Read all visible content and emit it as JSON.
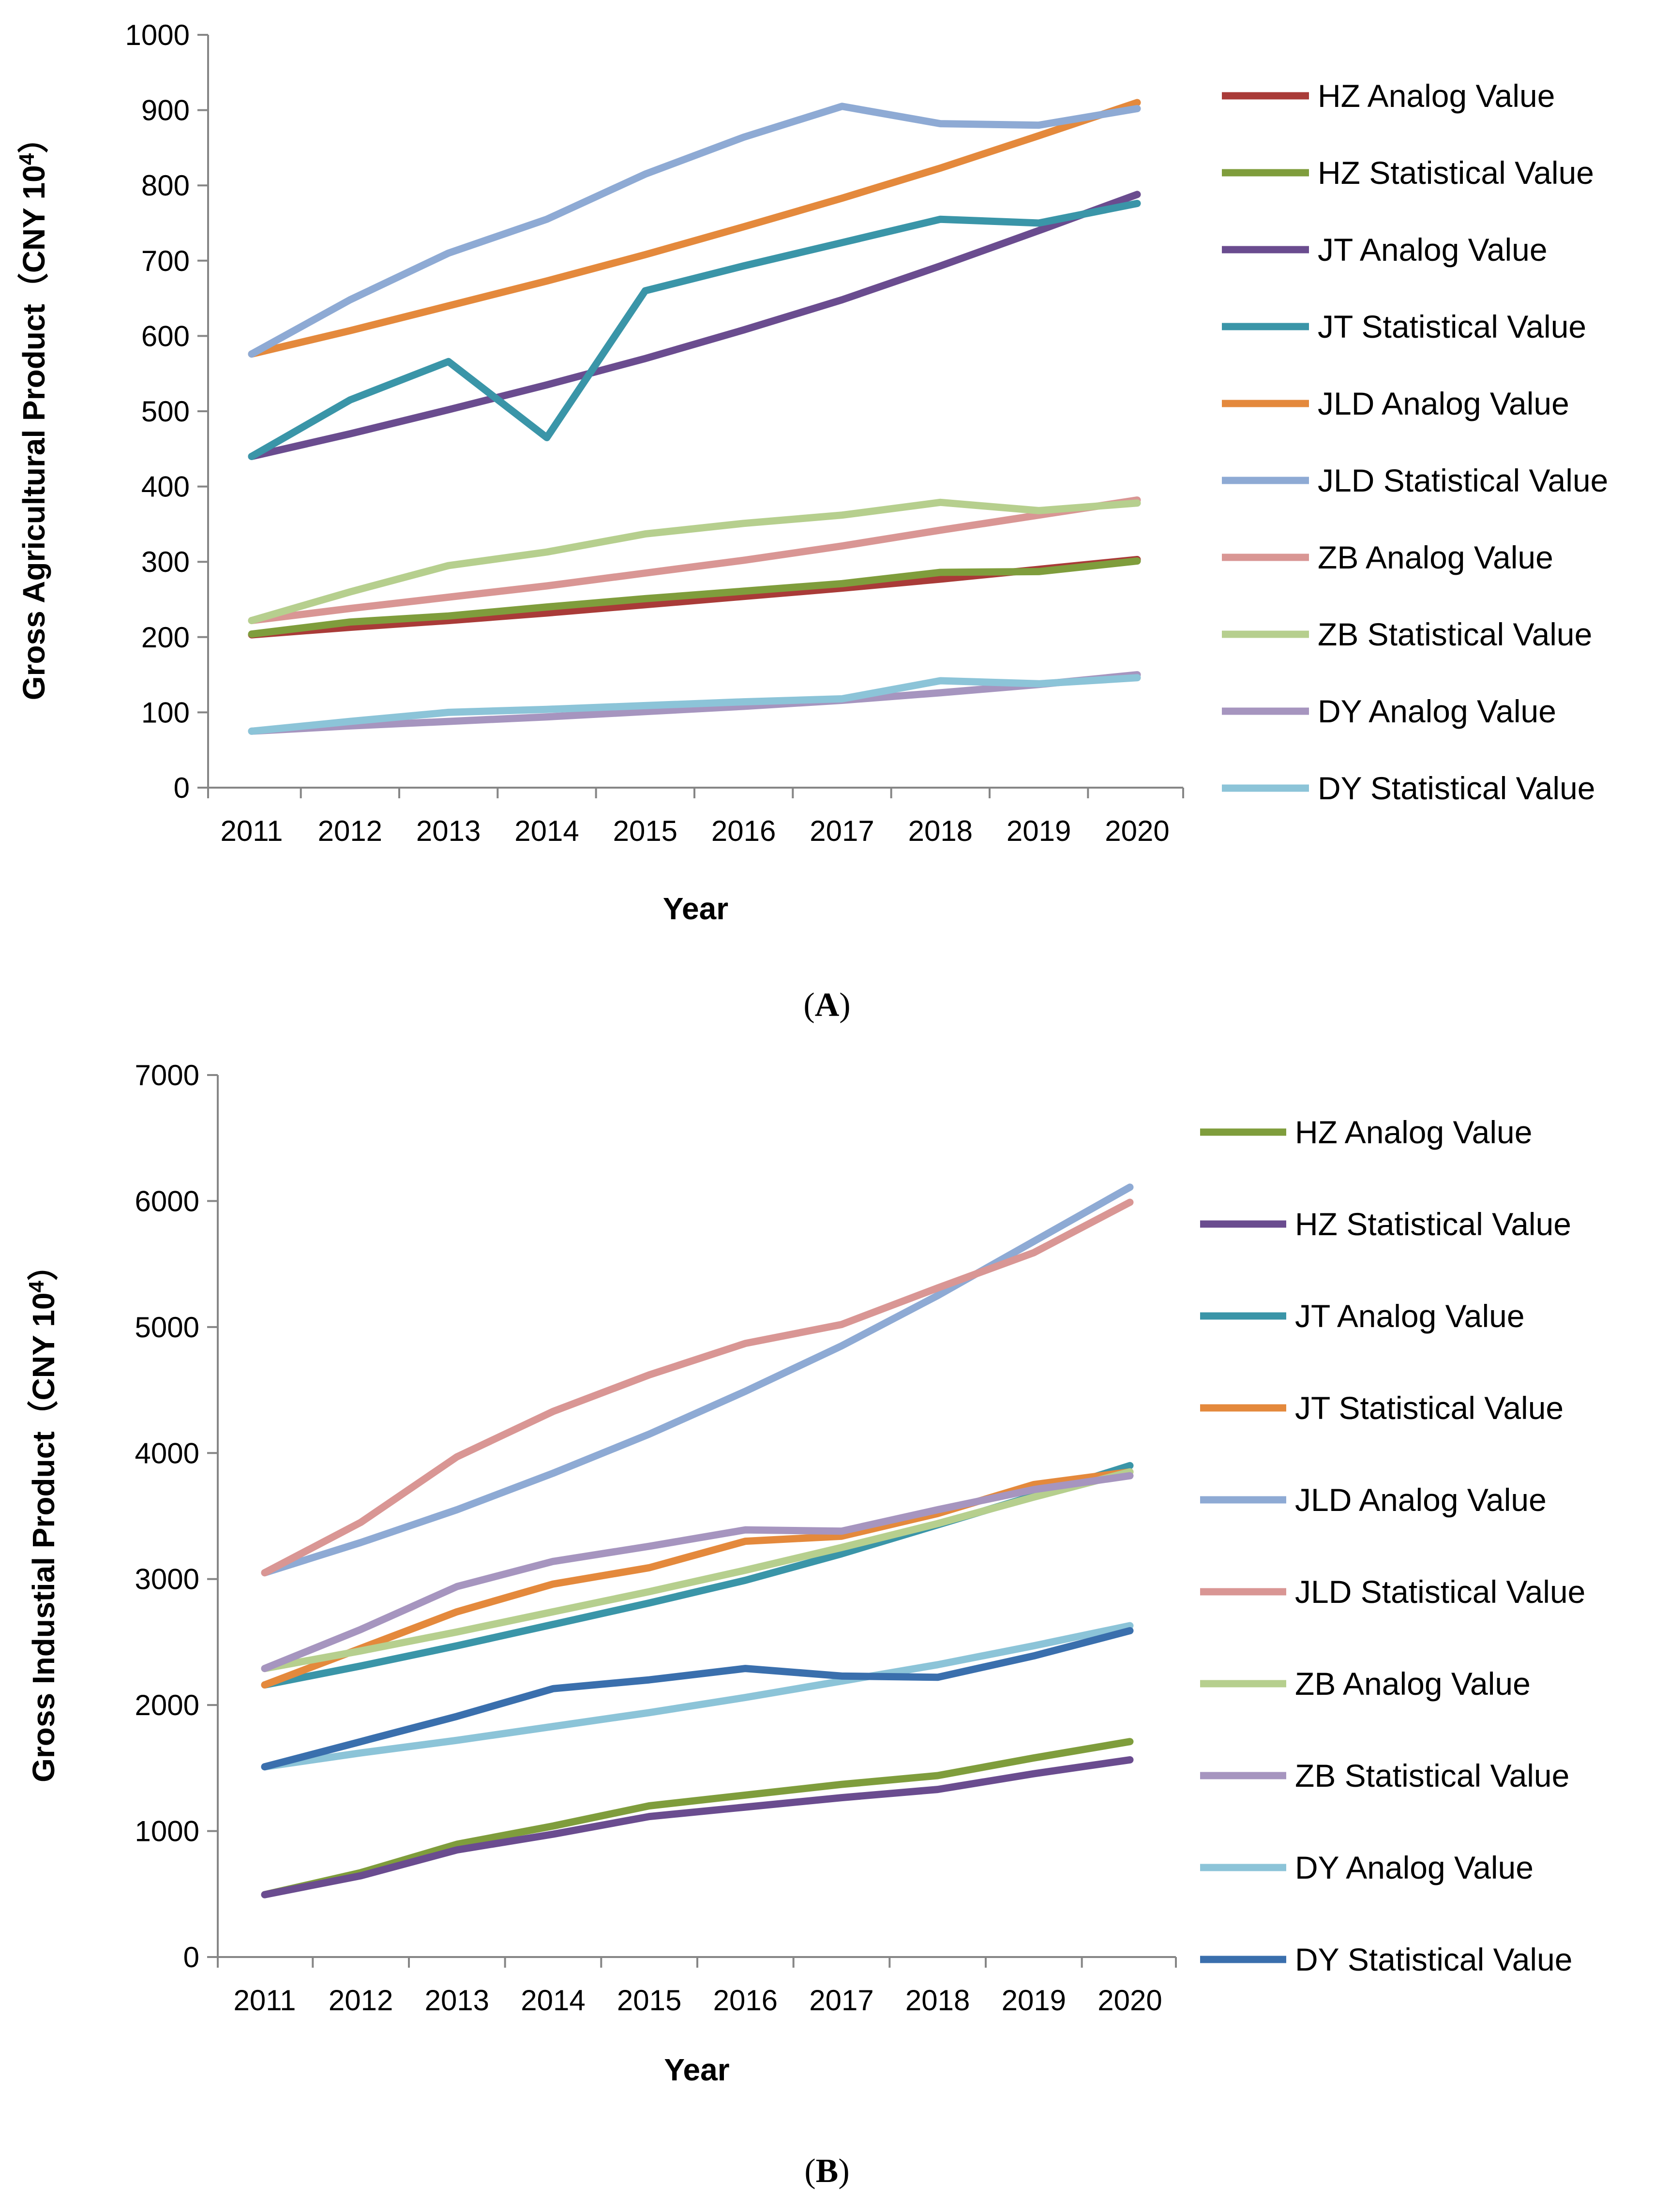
{
  "chart_data": [
    {
      "type": "line",
      "panel_label": "A",
      "xlabel": "Year",
      "ylabel": "Gross Agricultural Product（CNY 10",
      "ylabel_sup": "4",
      "ylabel_close": "）",
      "ylim": [
        0,
        1000
      ],
      "yticks": [
        0,
        100,
        200,
        300,
        400,
        500,
        600,
        700,
        800,
        900,
        1000
      ],
      "categories": [
        "2011",
        "2012",
        "2013",
        "2014",
        "2015",
        "2016",
        "2017",
        "2018",
        "2019",
        "2020"
      ],
      "grid": false,
      "legend": "right",
      "series": [
        {
          "name": "HZ Analog Value",
          "color": "#a93b38",
          "values": [
            203,
            213,
            222,
            232,
            243,
            254,
            265,
            277,
            290,
            303
          ]
        },
        {
          "name": "HZ Statistical Value",
          "color": "#7f9d3c",
          "values": [
            204,
            220,
            228,
            240,
            251,
            261,
            271,
            286,
            287,
            301
          ]
        },
        {
          "name": "JT Analog Value",
          "color": "#6a4c8f",
          "values": [
            440,
            470,
            502,
            535,
            570,
            608,
            648,
            693,
            740,
            788
          ]
        },
        {
          "name": "JT Statistical Value",
          "color": "#3a95a8",
          "values": [
            440,
            515,
            566,
            465,
            660,
            693,
            724,
            755,
            750,
            776
          ]
        },
        {
          "name": "JLD Analog Value",
          "color": "#e4893c",
          "values": [
            576,
            607,
            640,
            673,
            708,
            745,
            783,
            823,
            866,
            910
          ]
        },
        {
          "name": "JLD Statistical Value",
          "color": "#8eaad4",
          "values": [
            576,
            648,
            710,
            755,
            815,
            864,
            905,
            882,
            880,
            902
          ]
        },
        {
          "name": "ZB Analog Value",
          "color": "#d99694",
          "values": [
            222,
            238,
            253,
            268,
            285,
            302,
            321,
            342,
            362,
            382
          ]
        },
        {
          "name": "ZB Statistical Value",
          "color": "#b6cf8e",
          "values": [
            222,
            260,
            295,
            313,
            337,
            351,
            362,
            379,
            368,
            378
          ]
        },
        {
          "name": "DY Analog Value",
          "color": "#a695bf",
          "values": [
            75,
            82,
            88,
            94,
            101,
            108,
            116,
            126,
            137,
            150
          ]
        },
        {
          "name": "DY Statistical Value",
          "color": "#8cc4d8",
          "values": [
            75,
            88,
            100,
            104,
            109,
            114,
            118,
            142,
            138,
            146
          ]
        }
      ]
    },
    {
      "type": "line",
      "panel_label": "B",
      "xlabel": "Year",
      "ylabel": "Gross Industial Product（CNY 10",
      "ylabel_sup": "4",
      "ylabel_close": "）",
      "ylim": [
        0,
        7000
      ],
      "yticks": [
        0,
        1000,
        2000,
        3000,
        4000,
        5000,
        6000,
        7000
      ],
      "categories": [
        "2011",
        "2012",
        "2013",
        "2014",
        "2015",
        "2016",
        "2017",
        "2018",
        "2019",
        "2020"
      ],
      "grid": false,
      "legend": "right",
      "series": [
        {
          "name": "HZ Analog Value",
          "color": "#7f9d3c",
          "values": [
            495,
            670,
            895,
            1040,
            1200,
            1285,
            1370,
            1440,
            1580,
            1710
          ]
        },
        {
          "name": "HZ Statistical Value",
          "color": "#6a4c8f",
          "values": [
            495,
            645,
            850,
            975,
            1115,
            1190,
            1265,
            1330,
            1455,
            1565
          ]
        },
        {
          "name": "JT Analog Value",
          "color": "#3a95a8",
          "values": [
            2160,
            2310,
            2470,
            2640,
            2810,
            2990,
            3200,
            3430,
            3660,
            3900
          ]
        },
        {
          "name": "JT Statistical Value",
          "color": "#e4893c",
          "values": [
            2160,
            2450,
            2740,
            2960,
            3090,
            3300,
            3340,
            3520,
            3750,
            3850
          ]
        },
        {
          "name": "JLD Analog Value",
          "color": "#8eaad4",
          "values": [
            3050,
            3290,
            3550,
            3840,
            4150,
            4490,
            4850,
            5250,
            5680,
            6110
          ]
        },
        {
          "name": "JLD Statistical Value",
          "color": "#d99694",
          "values": [
            3050,
            3450,
            3970,
            4330,
            4620,
            4870,
            5020,
            5310,
            5590,
            5990
          ]
        },
        {
          "name": "ZB Analog Value",
          "color": "#b6cf8e",
          "values": [
            2290,
            2430,
            2580,
            2740,
            2900,
            3070,
            3250,
            3440,
            3650,
            3850
          ]
        },
        {
          "name": "ZB Statistical Value",
          "color": "#a695bf",
          "values": [
            2290,
            2600,
            2940,
            3140,
            3260,
            3390,
            3380,
            3550,
            3710,
            3820
          ]
        },
        {
          "name": "DY Analog Value",
          "color": "#8cc4d8",
          "values": [
            1510,
            1620,
            1720,
            1830,
            1940,
            2060,
            2190,
            2320,
            2470,
            2630
          ]
        },
        {
          "name": "DY Statistical Value",
          "color": "#3a6fad",
          "values": [
            1510,
            1710,
            1910,
            2130,
            2200,
            2290,
            2230,
            2220,
            2390,
            2590
          ]
        }
      ]
    }
  ]
}
